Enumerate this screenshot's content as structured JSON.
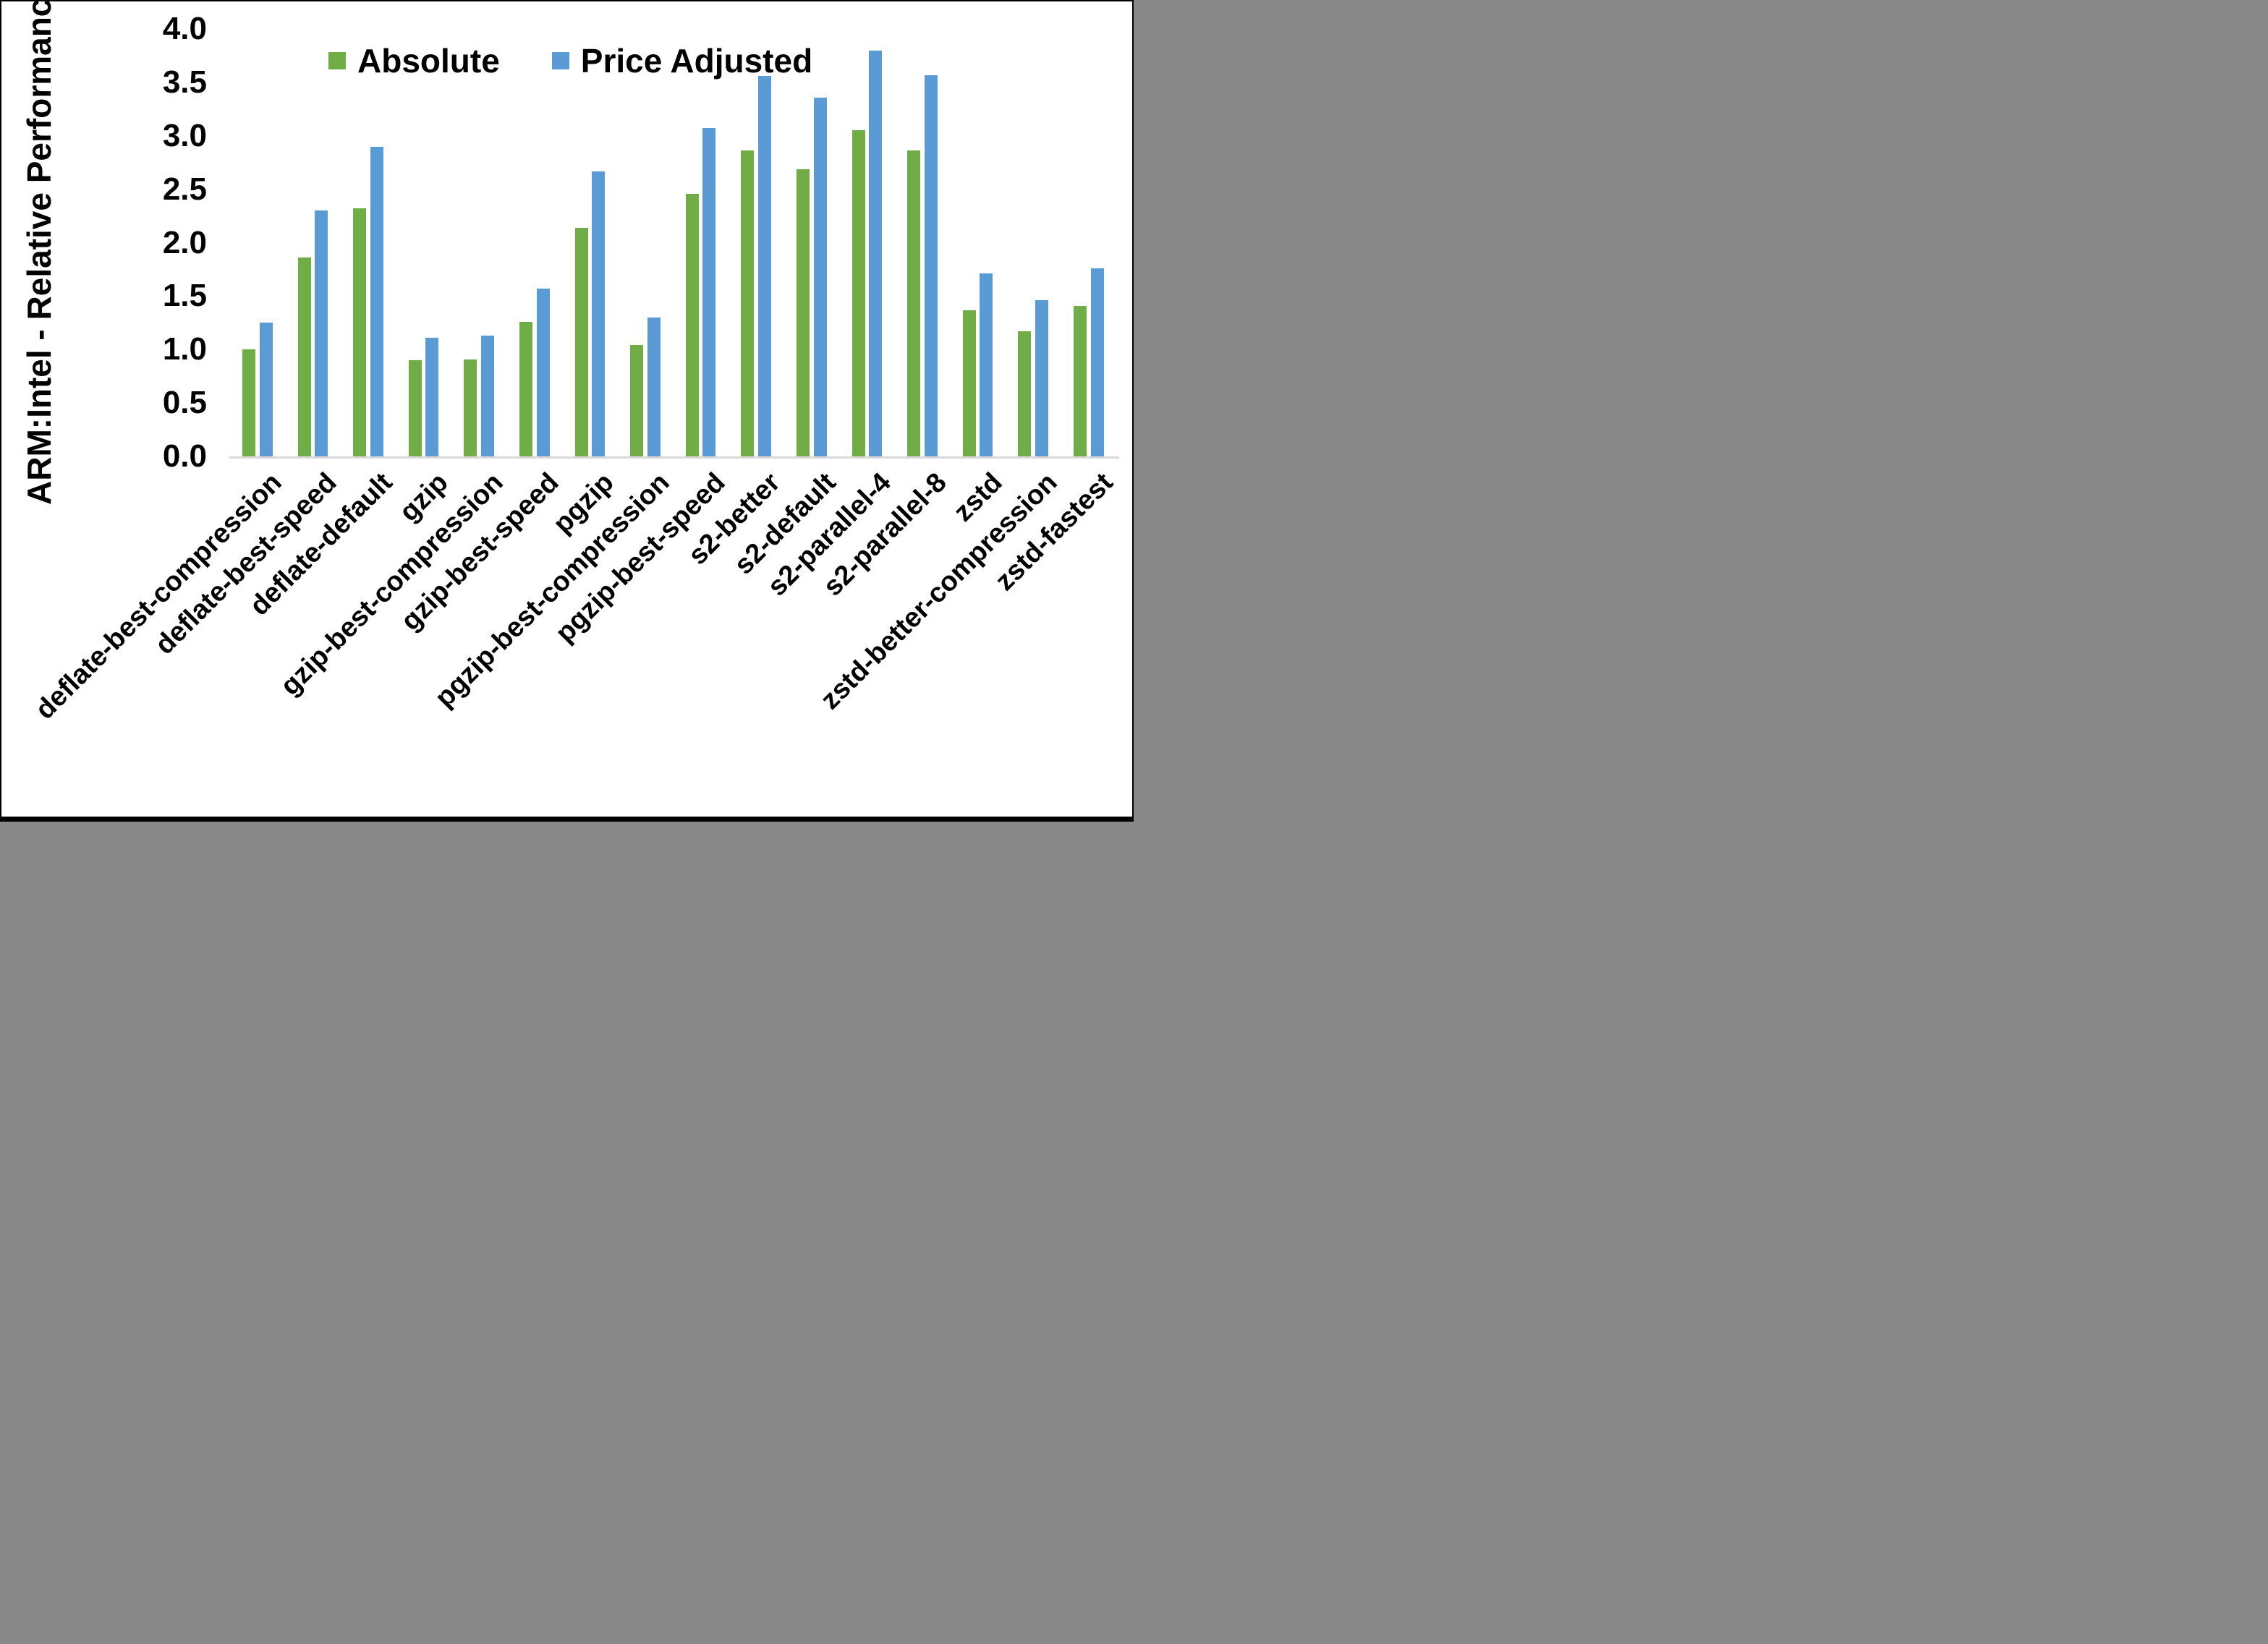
{
  "chart_data": {
    "type": "bar",
    "title": "",
    "ylabel": "ARM:Intel - Relative Performance",
    "xlabel": "",
    "ylim": [
      0.0,
      4.0
    ],
    "ytick_step": 0.5,
    "ytick_labels": [
      "0.0",
      "0.5",
      "1.0",
      "1.5",
      "2.0",
      "2.5",
      "3.0",
      "3.5",
      "4.0"
    ],
    "grid": false,
    "legend_position": "top-center",
    "categories": [
      "deflate-best-compression",
      "deflate-best-speed",
      "deflate-default",
      "gzip",
      "gzip-best-compression",
      "gzip-best-speed",
      "pgzip",
      "pgzip-best-compression",
      "pgzip-best-speed",
      "s2-better",
      "s2-default",
      "s2-parallel-4",
      "s2-parallel-8",
      "zstd",
      "zstd-better-compression",
      "zstd-fastest"
    ],
    "series": [
      {
        "name": "Absolute",
        "color": "#70AD47",
        "values": [
          1.0,
          1.86,
          2.32,
          0.9,
          0.91,
          1.26,
          2.14,
          1.04,
          2.46,
          2.86,
          2.69,
          3.05,
          2.86,
          1.37,
          1.17,
          1.41
        ]
      },
      {
        "name": "Price Adjusted",
        "color": "#5B9BD5",
        "values": [
          1.25,
          2.3,
          2.9,
          1.11,
          1.13,
          1.57,
          2.67,
          1.3,
          3.07,
          3.56,
          3.36,
          3.8,
          3.57,
          1.71,
          1.46,
          1.76
        ]
      }
    ]
  },
  "colors": {
    "background": "#FFFFFF",
    "border": "#000000",
    "axis_line": "#D9D9D9",
    "text": "#000000",
    "absolute_green": "#70AD47",
    "price_adjusted_blue": "#5B9BD5"
  }
}
